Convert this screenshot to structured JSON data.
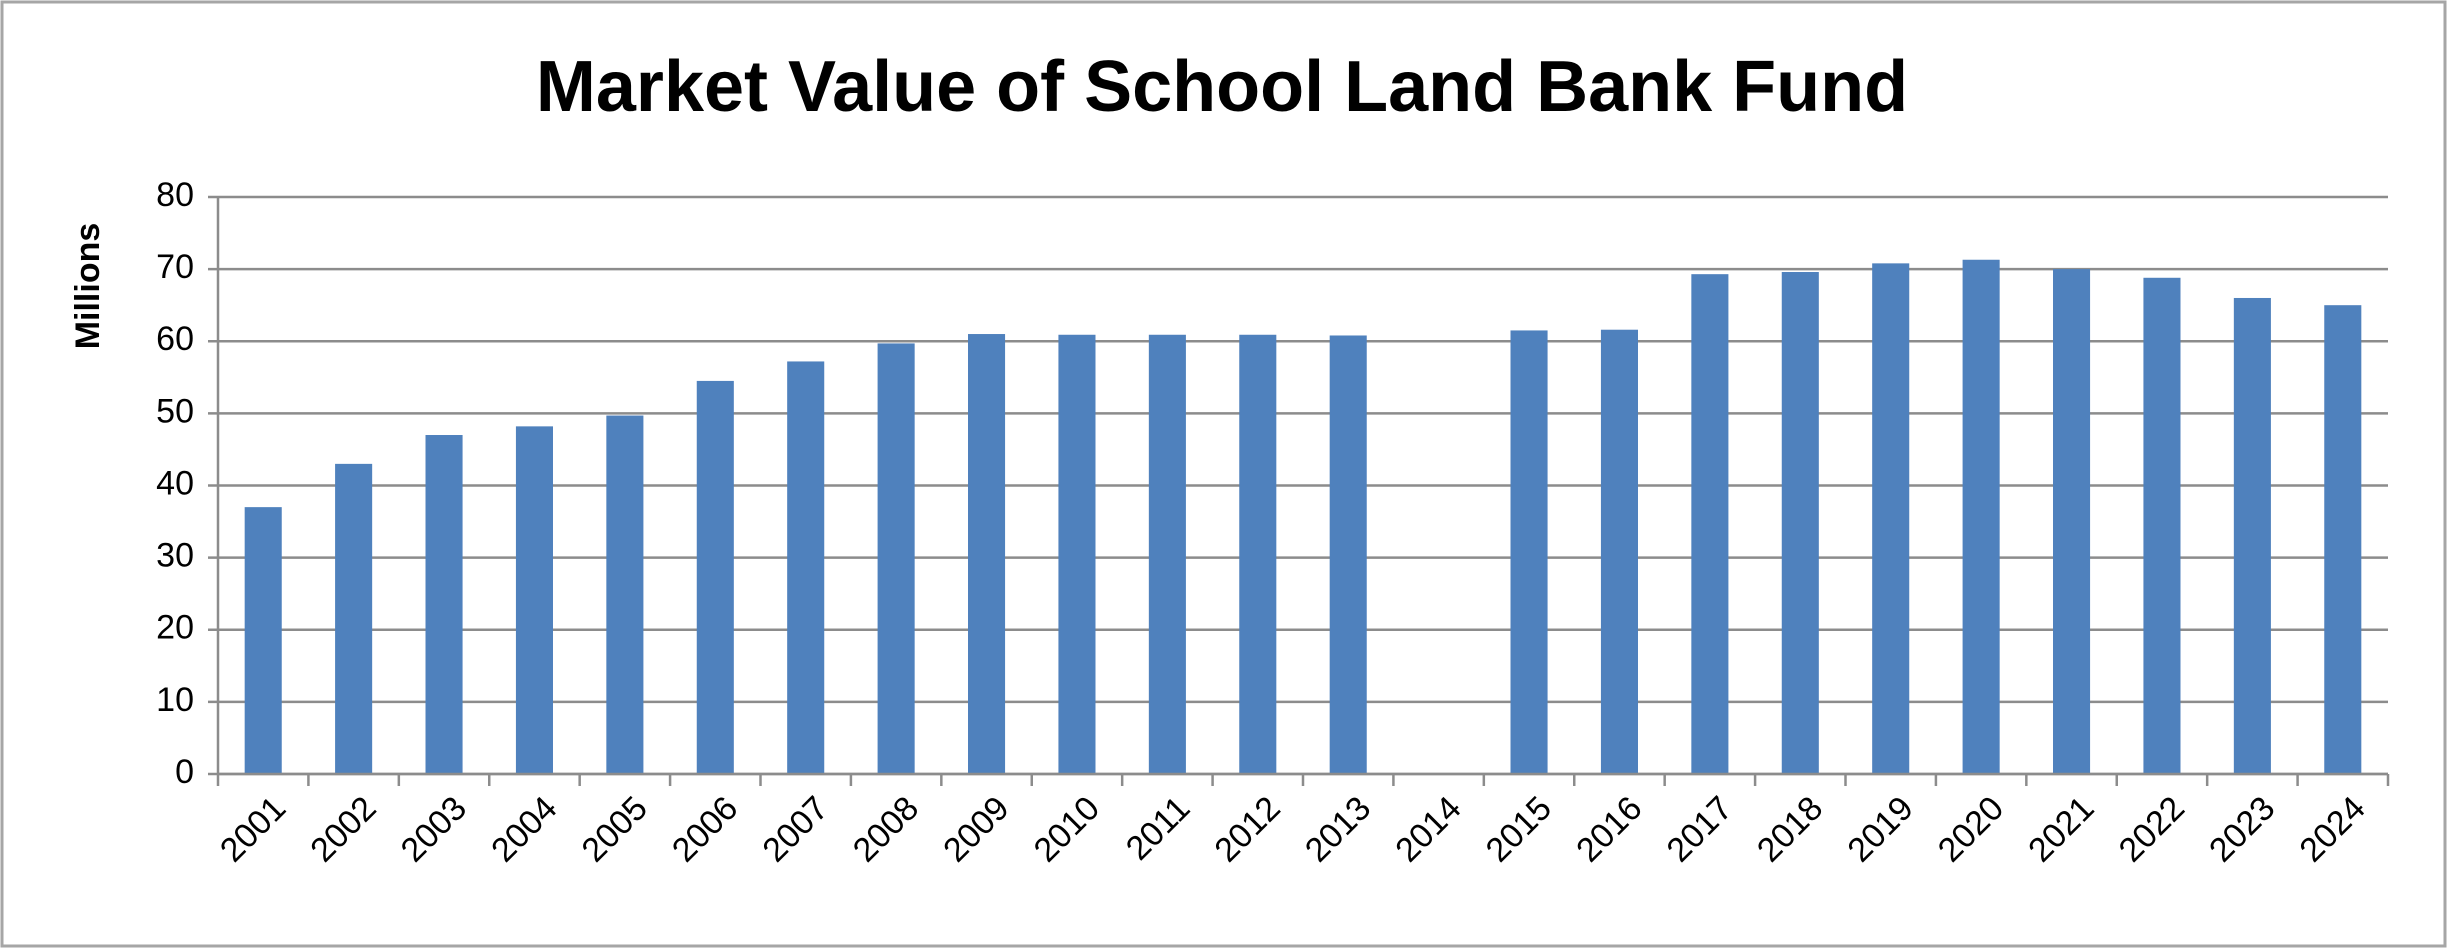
{
  "chart_data": {
    "type": "bar",
    "title": "Market Value of School Land Bank Fund",
    "y_label": "Millions",
    "categories": [
      "2001",
      "2002",
      "2003",
      "2004",
      "2005",
      "2006",
      "2007",
      "2008",
      "2009",
      "2010",
      "2011",
      "2012",
      "2013",
      "2014",
      "2015",
      "2016",
      "2017",
      "2018",
      "2019",
      "2020",
      "2021",
      "2022",
      "2023",
      "2024"
    ],
    "values": [
      37,
      43,
      47,
      48.2,
      49.7,
      54.5,
      57.2,
      59.7,
      61,
      60.9,
      60.9,
      60.9,
      60.8,
      null,
      61.5,
      61.6,
      69.3,
      69.6,
      70.8,
      71.3,
      70,
      68.8,
      66,
      65
    ],
    "color": "#4f81bd",
    "ylim": [
      0,
      80
    ],
    "yticks": [
      0,
      10,
      20,
      30,
      40,
      50,
      60,
      70,
      80
    ],
    "grid": true
  }
}
